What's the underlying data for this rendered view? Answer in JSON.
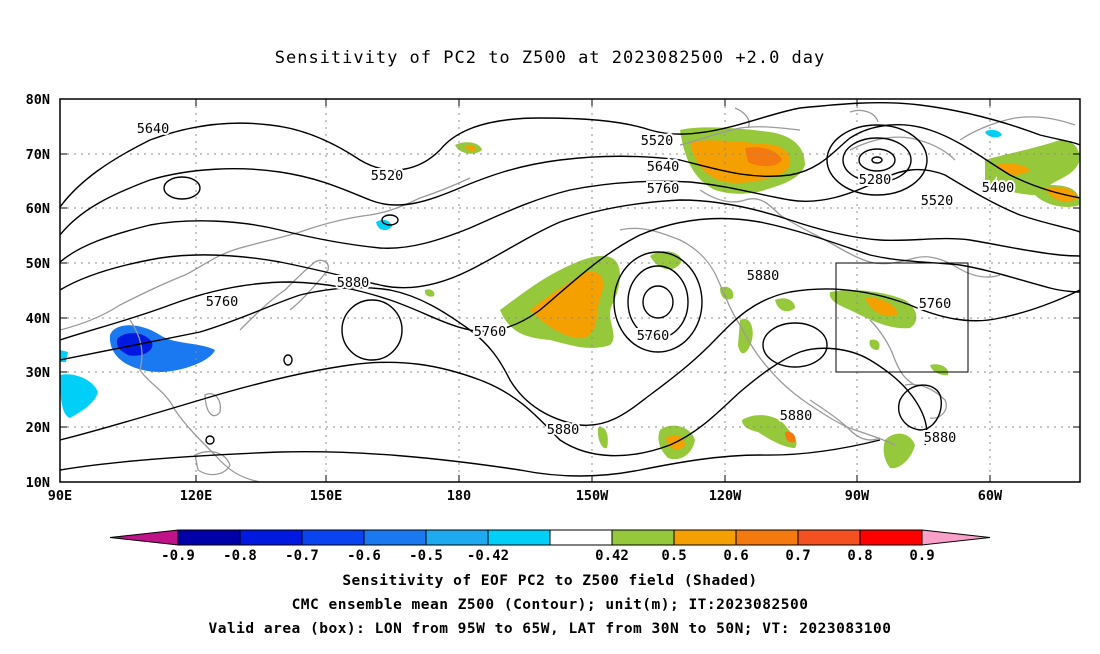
{
  "title": "Sensitivity of PC2 to Z500 at 2023082500 +2.0 day",
  "lat_labels": [
    "80N",
    "70N",
    "60N",
    "50N",
    "40N",
    "30N",
    "20N",
    "10N"
  ],
  "lon_labels": [
    "90E",
    "120E",
    "150E",
    "180",
    "150W",
    "120W",
    "90W",
    "60W"
  ],
  "contour_labels": [
    "5640",
    "5520",
    "5520",
    "5640",
    "5760",
    "5280",
    "5400",
    "5520",
    "5760",
    "5880",
    "5760",
    "5760",
    "5880",
    "5760",
    "5880",
    "5880",
    "5880"
  ],
  "colorbar": {
    "colors": [
      "#c0138a",
      "#0000a8",
      "#0018e0",
      "#0a44f0",
      "#1a78f0",
      "#1eaaf0",
      "#00d0f8",
      "#ffffff",
      "#96c83c",
      "#f4a000",
      "#f47a10",
      "#f45020",
      "#ff0000",
      "#f8a0c8"
    ],
    "tick_labels": [
      "-0.9",
      "-0.8",
      "-0.7",
      "-0.6",
      "-0.5",
      "-0.42",
      "0.42",
      "0.5",
      "0.6",
      "0.7",
      "0.8",
      "0.9"
    ]
  },
  "captions": [
    "Sensitivity of EOF PC2 to Z500 field (Shaded)",
    "CMC ensemble mean Z500 (Contour); unit(m); IT:2023082500",
    "Valid area (box): LON from 95W to 65W, LAT from 30N to 50N; VT: 2023083100"
  ]
}
